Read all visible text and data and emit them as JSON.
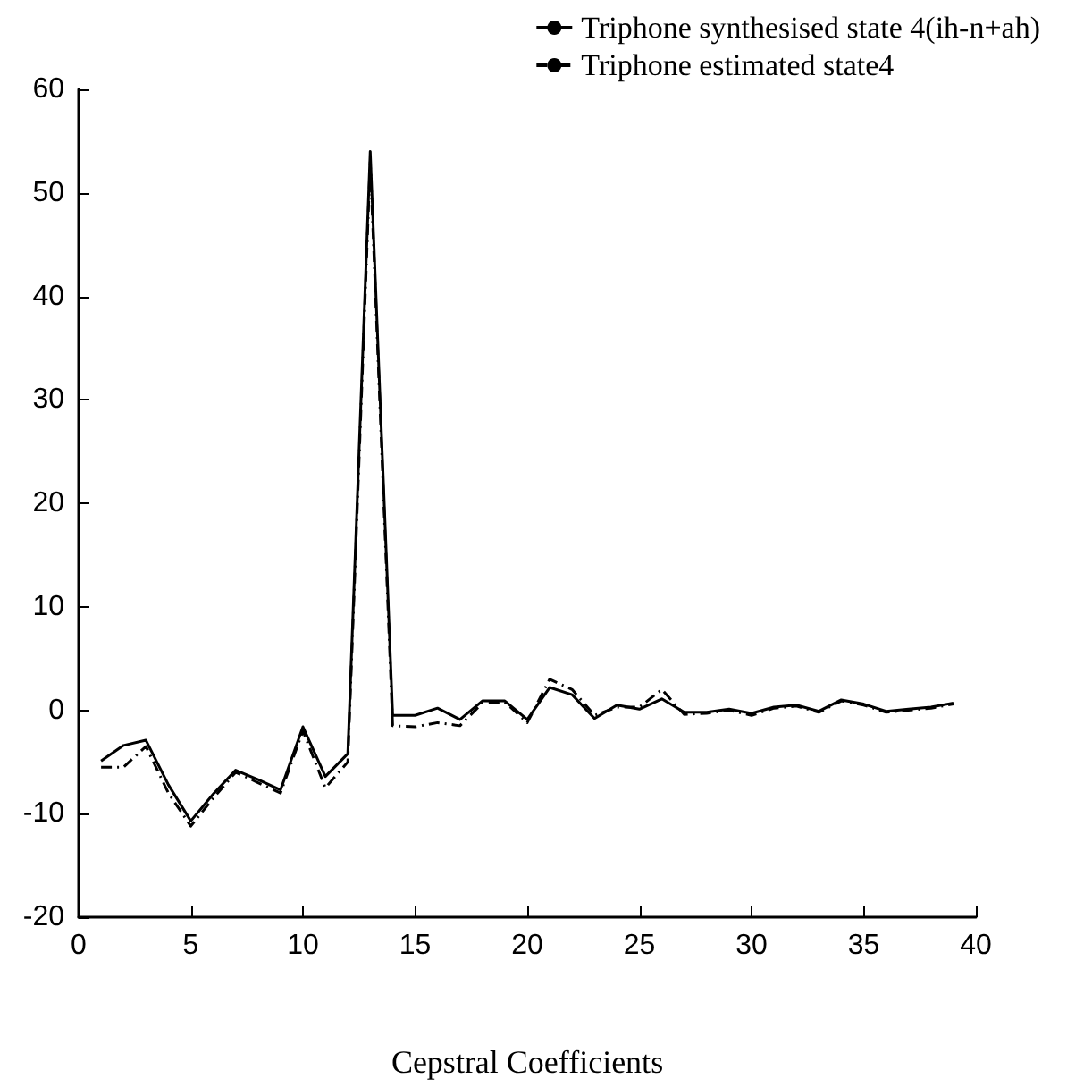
{
  "chart_data": {
    "type": "line",
    "xlabel": "Cepstral Coefficients",
    "x": [
      1,
      2,
      3,
      4,
      5,
      6,
      7,
      8,
      9,
      10,
      11,
      12,
      13,
      14,
      15,
      16,
      17,
      18,
      19,
      20,
      21,
      22,
      23,
      24,
      25,
      26,
      27,
      28,
      29,
      30,
      31,
      32,
      33,
      34,
      35,
      36,
      37,
      38,
      39
    ],
    "series": [
      {
        "name": "Triphone synthesised state 4(ih-n+ah)",
        "color": "#000000",
        "line_style": "solid",
        "values": [
          -4.9,
          -3.4,
          -2.9,
          -7.2,
          -10.7,
          -8.1,
          -5.8,
          -6.7,
          -7.7,
          -1.6,
          -6.4,
          -4.2,
          54,
          -0.5,
          -0.5,
          0.2,
          -0.9,
          0.9,
          0.9,
          -0.9,
          2.2,
          1.5,
          -0.8,
          0.5,
          0.1,
          1.1,
          -0.2,
          -0.2,
          0.1,
          -0.3,
          0.3,
          0.5,
          -0.1,
          1.0,
          0.6,
          -0.1,
          0.1,
          0.3,
          0.7
        ]
      },
      {
        "name": "Triphone estimated state4",
        "color": "#000000",
        "line_style": "dashed",
        "values": [
          -5.5,
          -5.5,
          -3.5,
          -8,
          -11.2,
          -8.5,
          -6,
          -7,
          -8,
          -2,
          -7.5,
          -5,
          53,
          -1.5,
          -1.6,
          -1.2,
          -1.5,
          0.7,
          0.8,
          -1.2,
          3,
          2,
          -0.5,
          0.3,
          0.3,
          2,
          -0.4,
          -0.3,
          0,
          -0.5,
          0.2,
          0.4,
          -0.2,
          0.9,
          0.5,
          -0.2,
          0,
          0.2,
          0.6
        ]
      }
    ],
    "xlim": [
      0,
      40
    ],
    "xticks": [
      0,
      5,
      10,
      15,
      20,
      25,
      30,
      35,
      40
    ],
    "ylim": [
      -20,
      60
    ],
    "yticks": [
      -20,
      -10,
      0,
      10,
      20,
      30,
      40,
      50,
      60
    ],
    "grid": false,
    "legend": "top right",
    "marker": "none"
  }
}
